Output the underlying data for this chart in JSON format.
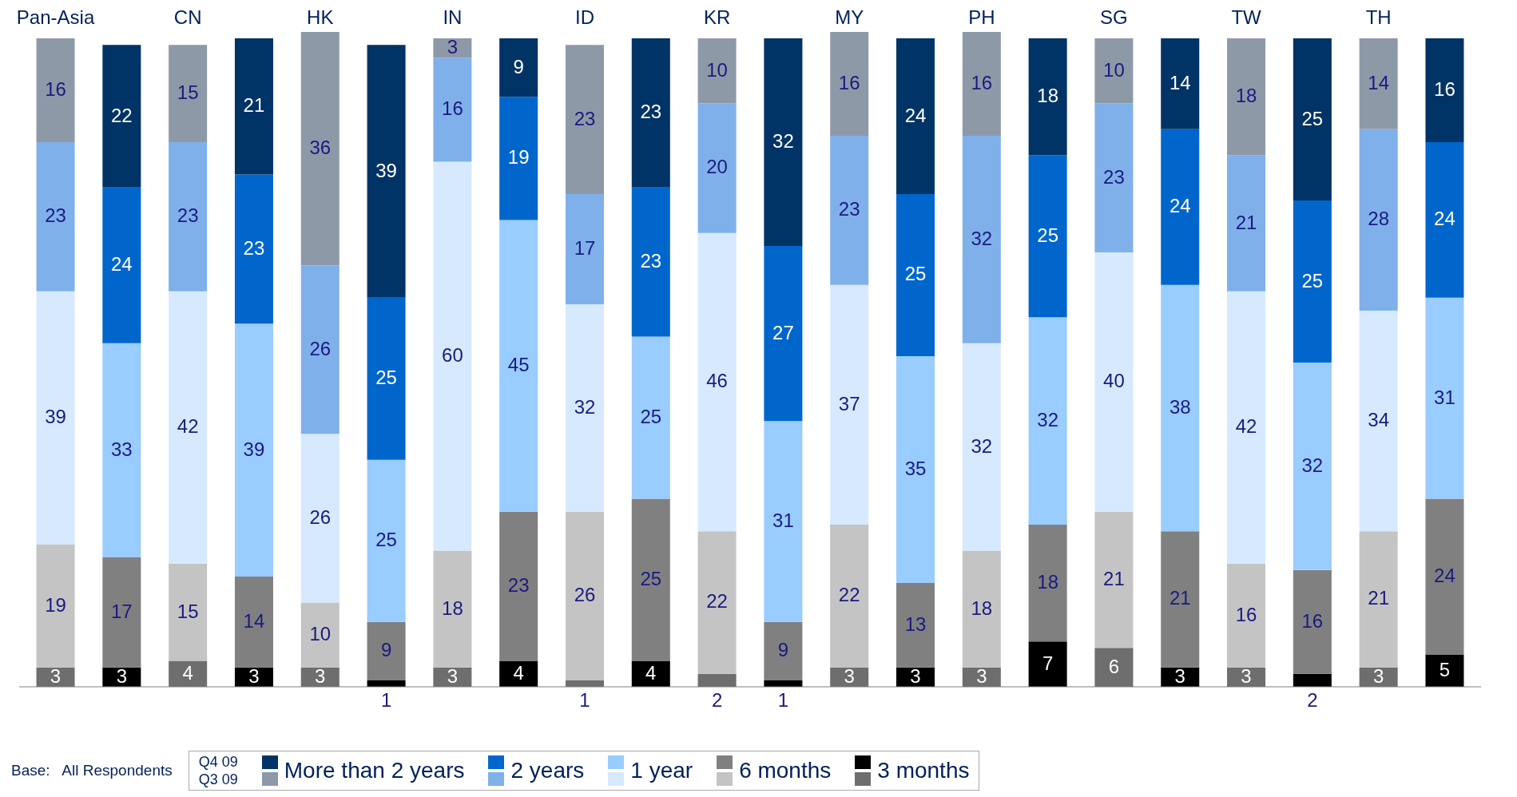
{
  "chart_data": {
    "type": "bar",
    "stacked": true,
    "data_labels": true,
    "legend": "bottom",
    "tick_labels": "x",
    "ylim": [
      0,
      101
    ],
    "categories": [
      "Pan-Asia",
      null,
      "CN",
      null,
      "HK",
      null,
      "IN",
      null,
      "ID",
      null,
      "KR",
      null,
      "MY",
      null,
      "PH",
      null,
      "SG",
      null,
      "TW",
      null,
      "TH",
      null
    ],
    "series": [
      {
        "name": "3 months",
        "colors": [
          "#6e6e6e",
          "#000000",
          "#6e6e6e",
          "#000000",
          "#6e6e6e",
          "#000000",
          "#6e6e6e",
          "#000000",
          "#6e6e6e",
          "#000000",
          "#6e6e6e",
          "#000000",
          "#6e6e6e",
          "#000000",
          "#6e6e6e",
          "#000000",
          "#6e6e6e",
          "#000000",
          "#6e6e6e",
          "#000000",
          "#6e6e6e",
          "#000000"
        ],
        "values": [
          3,
          3,
          4,
          3,
          3,
          1,
          3,
          4,
          1,
          4,
          2,
          1,
          3,
          3,
          3,
          7,
          6,
          3,
          3,
          2,
          3,
          5
        ]
      },
      {
        "name": "6 months",
        "colors": [
          "#c4c4c4",
          "#808080",
          "#c4c4c4",
          "#808080",
          "#c4c4c4",
          "#808080",
          "#c4c4c4",
          "#808080",
          "#c4c4c4",
          "#808080",
          "#c4c4c4",
          "#808080",
          "#c4c4c4",
          "#808080",
          "#c4c4c4",
          "#808080",
          "#c4c4c4",
          "#808080",
          "#c4c4c4",
          "#808080",
          "#c4c4c4",
          "#808080"
        ],
        "values": [
          19,
          17,
          15,
          14,
          10,
          9,
          18,
          23,
          26,
          25,
          22,
          9,
          22,
          13,
          18,
          18,
          21,
          21,
          16,
          16,
          21,
          24
        ]
      },
      {
        "name": "1 year",
        "colors": [
          "#d6e9ff",
          "#99ccff",
          "#d6e9ff",
          "#99ccff",
          "#d6e9ff",
          "#99ccff",
          "#d6e9ff",
          "#99ccff",
          "#d6e9ff",
          "#99ccff",
          "#d6e9ff",
          "#99ccff",
          "#d6e9ff",
          "#99ccff",
          "#d6e9ff",
          "#99ccff",
          "#d6e9ff",
          "#99ccff",
          "#d6e9ff",
          "#99ccff",
          "#d6e9ff",
          "#99ccff"
        ],
        "values": [
          39,
          33,
          42,
          39,
          26,
          25,
          60,
          45,
          32,
          25,
          46,
          31,
          37,
          35,
          32,
          32,
          40,
          38,
          42,
          32,
          34,
          31
        ]
      },
      {
        "name": "2 years",
        "colors": [
          "#7fb0ea",
          "#0066cc",
          "#7fb0ea",
          "#0066cc",
          "#7fb0ea",
          "#0066cc",
          "#7fb0ea",
          "#0066cc",
          "#7fb0ea",
          "#0066cc",
          "#7fb0ea",
          "#0066cc",
          "#7fb0ea",
          "#0066cc",
          "#7fb0ea",
          "#0066cc",
          "#7fb0ea",
          "#0066cc",
          "#7fb0ea",
          "#0066cc",
          "#7fb0ea",
          "#0066cc"
        ],
        "values": [
          23,
          24,
          23,
          23,
          26,
          25,
          16,
          19,
          17,
          23,
          20,
          27,
          23,
          25,
          32,
          25,
          23,
          24,
          21,
          25,
          28,
          24
        ]
      },
      {
        "name": "More than 2 years",
        "colors": [
          "#8e99a8",
          "#003366",
          "#8e99a8",
          "#003366",
          "#8e99a8",
          "#003366",
          "#8e99a8",
          "#003366",
          "#8e99a8",
          "#003366",
          "#8e99a8",
          "#003366",
          "#8e99a8",
          "#003366",
          "#8e99a8",
          "#003366",
          "#8e99a8",
          "#003366",
          "#8e99a8",
          "#003366",
          "#8e99a8",
          "#003366"
        ],
        "values": [
          16,
          22,
          15,
          21,
          36,
          39,
          3,
          9,
          23,
          23,
          10,
          32,
          16,
          24,
          16,
          18,
          10,
          14,
          18,
          25,
          14,
          16
        ]
      }
    ],
    "annotations": [
      "Q4 09",
      "Q3 09",
      "Base:   All Respondents"
    ]
  }
}
